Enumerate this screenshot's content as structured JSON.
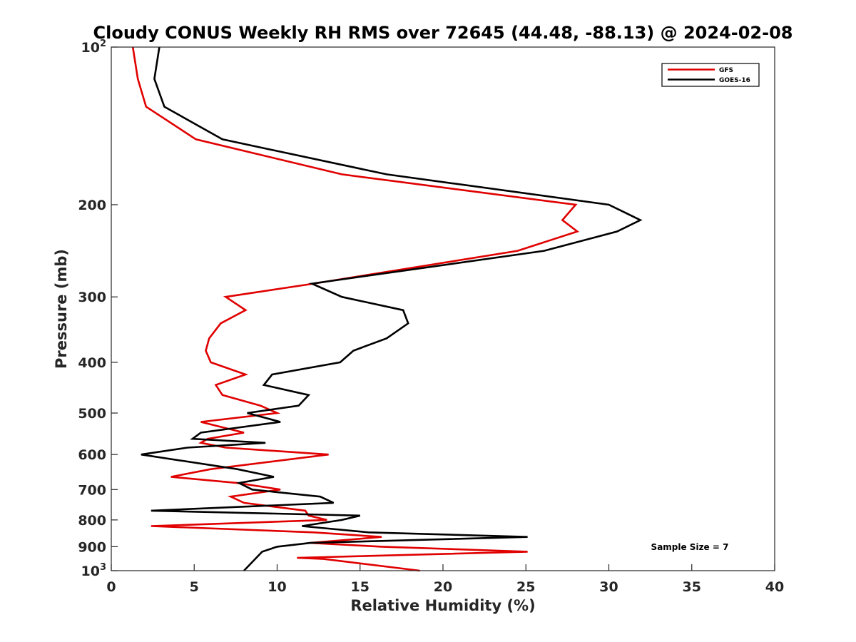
{
  "chart_data": {
    "type": "line",
    "title": "Cloudy CONUS Weekly RH RMS over 72645 (44.48, -88.13) @ 2024-02-08",
    "xlabel": "Relative Humidity (%)",
    "ylabel": "Pressure (mb)",
    "xlim": [
      0,
      40
    ],
    "ylim": [
      100,
      1000
    ],
    "y_scale": "log",
    "y_reversed": true,
    "x_ticks": [
      "0",
      "5",
      "10",
      "15",
      "20",
      "25",
      "30",
      "35",
      "40"
    ],
    "y_ticks": [
      {
        "value": 100,
        "base": "10",
        "exp": "2"
      },
      {
        "value": 200,
        "label": "200"
      },
      {
        "value": 300,
        "label": "300"
      },
      {
        "value": 400,
        "label": "400"
      },
      {
        "value": 500,
        "label": "500"
      },
      {
        "value": 600,
        "label": "600"
      },
      {
        "value": 700,
        "label": "700"
      },
      {
        "value": 800,
        "label": "800"
      },
      {
        "value": 900,
        "label": "900"
      },
      {
        "value": 1000,
        "base": "10",
        "exp": "3"
      }
    ],
    "grid": false,
    "legend_position": "top-right",
    "annotation": "Sample Size = 7",
    "series": [
      {
        "name": "GFS",
        "color": "#e00000",
        "points": [
          [
            1.3,
            100
          ],
          [
            1.6,
            115
          ],
          [
            2.1,
            130
          ],
          [
            5.1,
            150
          ],
          [
            13.9,
            175
          ],
          [
            28.0,
            200
          ],
          [
            27.2,
            214
          ],
          [
            28.1,
            225
          ],
          [
            24.5,
            245
          ],
          [
            12.2,
            283
          ],
          [
            6.9,
            300
          ],
          [
            8.1,
            318
          ],
          [
            6.6,
            337
          ],
          [
            5.9,
            360
          ],
          [
            5.7,
            380
          ],
          [
            6.0,
            400
          ],
          [
            8.1,
            422
          ],
          [
            6.3,
            442
          ],
          [
            6.7,
            462
          ],
          [
            9.0,
            484
          ],
          [
            10.0,
            500
          ],
          [
            5.4,
            520
          ],
          [
            8.0,
            545
          ],
          [
            5.8,
            560
          ],
          [
            5.4,
            570
          ],
          [
            6.9,
            582
          ],
          [
            13.1,
            600
          ],
          [
            6.0,
            640
          ],
          [
            3.6,
            662
          ],
          [
            7.6,
            680
          ],
          [
            10.2,
            700
          ],
          [
            7.2,
            722
          ],
          [
            8.0,
            742
          ],
          [
            11.7,
            768
          ],
          [
            11.9,
            785
          ],
          [
            13.0,
            800
          ],
          [
            2.4,
            822
          ],
          [
            12.2,
            845
          ],
          [
            16.3,
            862
          ],
          [
            12.0,
            885
          ],
          [
            16.3,
            900
          ],
          [
            25.1,
            920
          ],
          [
            11.2,
            945
          ],
          [
            12.8,
            950
          ],
          [
            18.6,
            1000
          ]
        ]
      },
      {
        "name": "GOES-16",
        "color": "#000000",
        "points": [
          [
            2.9,
            100
          ],
          [
            2.6,
            115
          ],
          [
            3.2,
            130
          ],
          [
            6.7,
            150
          ],
          [
            16.6,
            175
          ],
          [
            30.0,
            200
          ],
          [
            31.9,
            214
          ],
          [
            30.5,
            225
          ],
          [
            26.1,
            245
          ],
          [
            12.1,
            283
          ],
          [
            13.9,
            300
          ],
          [
            17.6,
            318
          ],
          [
            17.9,
            337
          ],
          [
            16.6,
            360
          ],
          [
            14.6,
            380
          ],
          [
            13.8,
            400
          ],
          [
            9.7,
            422
          ],
          [
            9.2,
            442
          ],
          [
            11.9,
            462
          ],
          [
            11.3,
            484
          ],
          [
            8.2,
            500
          ],
          [
            10.2,
            520
          ],
          [
            5.4,
            545
          ],
          [
            4.9,
            560
          ],
          [
            9.3,
            570
          ],
          [
            4.6,
            582
          ],
          [
            1.8,
            600
          ],
          [
            7.6,
            640
          ],
          [
            9.8,
            662
          ],
          [
            7.7,
            680
          ],
          [
            8.5,
            700
          ],
          [
            12.6,
            722
          ],
          [
            13.4,
            742
          ],
          [
            2.4,
            768
          ],
          [
            15.0,
            785
          ],
          [
            13.9,
            800
          ],
          [
            11.5,
            822
          ],
          [
            15.5,
            845
          ],
          [
            25.1,
            862
          ],
          [
            12.0,
            885
          ],
          [
            10.0,
            900
          ],
          [
            9.1,
            920
          ],
          [
            8.0,
            1000
          ]
        ]
      }
    ]
  }
}
